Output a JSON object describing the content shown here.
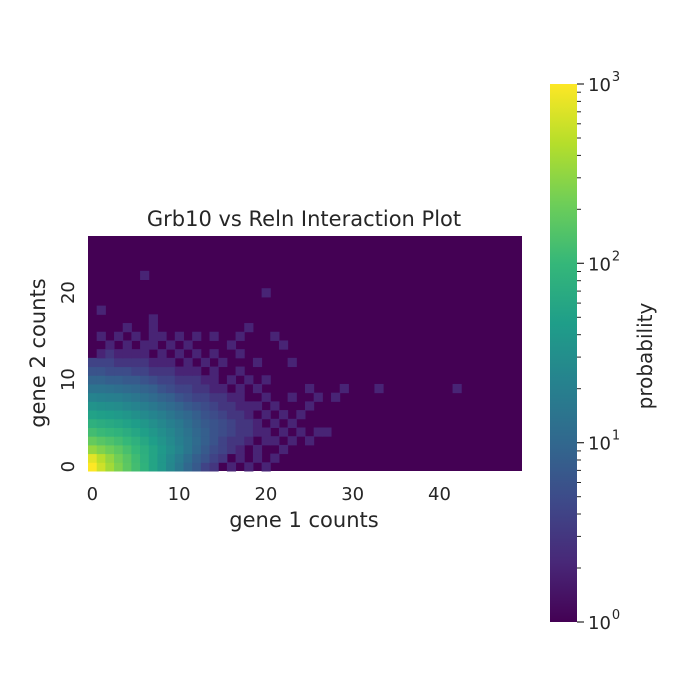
{
  "chart_data": {
    "type": "heatmap",
    "title": "Grb10 vs Reln Interaction Plot",
    "xlabel": "gene 1 counts",
    "ylabel": "gene 2 counts",
    "x_range": [
      0,
      49
    ],
    "y_range": [
      0,
      26
    ],
    "x_ticks": [
      0,
      10,
      20,
      30,
      40
    ],
    "y_ticks": [
      0,
      10,
      20
    ],
    "x_tick_labels": [
      "0",
      "10",
      "20",
      "30",
      "40"
    ],
    "y_tick_labels": [
      "0",
      "10",
      "20"
    ],
    "background_value": 1,
    "colormap": "viridis",
    "colorbar": {
      "label": "probability",
      "scale": "log",
      "range": [
        1,
        1000
      ],
      "tick_labels": [
        {
          "base": "10",
          "exp": "0",
          "value": 1
        },
        {
          "base": "10",
          "exp": "1",
          "value": 10
        },
        {
          "base": "10",
          "exp": "2",
          "value": 100
        },
        {
          "base": "10",
          "exp": "3",
          "value": 1000
        }
      ]
    },
    "cells": [
      [
        0,
        0,
        1000
      ],
      [
        1,
        0,
        600
      ],
      [
        2,
        0,
        380
      ],
      [
        3,
        0,
        250
      ],
      [
        4,
        0,
        170
      ],
      [
        5,
        0,
        120
      ],
      [
        6,
        0,
        85
      ],
      [
        7,
        0,
        55
      ],
      [
        8,
        0,
        38
      ],
      [
        9,
        0,
        25
      ],
      [
        10,
        0,
        16
      ],
      [
        11,
        0,
        10
      ],
      [
        12,
        0,
        7
      ],
      [
        13,
        0,
        4
      ],
      [
        14,
        0,
        3
      ],
      [
        16,
        0,
        2
      ],
      [
        18,
        0,
        2
      ],
      [
        20,
        0,
        2
      ],
      [
        0,
        1,
        750
      ],
      [
        1,
        1,
        480
      ],
      [
        2,
        1,
        320
      ],
      [
        3,
        1,
        220
      ],
      [
        4,
        1,
        160
      ],
      [
        5,
        1,
        115
      ],
      [
        6,
        1,
        80
      ],
      [
        7,
        1,
        55
      ],
      [
        8,
        1,
        38
      ],
      [
        9,
        1,
        26
      ],
      [
        10,
        1,
        18
      ],
      [
        11,
        1,
        12
      ],
      [
        12,
        1,
        8
      ],
      [
        13,
        1,
        6
      ],
      [
        14,
        1,
        4
      ],
      [
        15,
        1,
        3
      ],
      [
        17,
        1,
        2
      ],
      [
        19,
        1,
        2
      ],
      [
        21,
        1,
        2
      ],
      [
        0,
        2,
        330
      ],
      [
        1,
        2,
        260
      ],
      [
        2,
        2,
        210
      ],
      [
        3,
        2,
        170
      ],
      [
        4,
        2,
        130
      ],
      [
        5,
        2,
        100
      ],
      [
        6,
        2,
        75
      ],
      [
        7,
        2,
        55
      ],
      [
        8,
        2,
        40
      ],
      [
        9,
        2,
        30
      ],
      [
        10,
        2,
        22
      ],
      [
        11,
        2,
        15
      ],
      [
        12,
        2,
        10
      ],
      [
        13,
        2,
        7
      ],
      [
        14,
        2,
        5
      ],
      [
        15,
        2,
        4
      ],
      [
        16,
        2,
        3
      ],
      [
        17,
        2,
        2
      ],
      [
        19,
        2,
        2
      ],
      [
        22,
        2,
        2
      ],
      [
        0,
        3,
        190
      ],
      [
        1,
        3,
        160
      ],
      [
        2,
        3,
        140
      ],
      [
        3,
        3,
        120
      ],
      [
        4,
        3,
        100
      ],
      [
        5,
        3,
        80
      ],
      [
        6,
        3,
        62
      ],
      [
        7,
        3,
        47
      ],
      [
        8,
        3,
        35
      ],
      [
        9,
        3,
        27
      ],
      [
        10,
        3,
        20
      ],
      [
        11,
        3,
        15
      ],
      [
        12,
        3,
        11
      ],
      [
        13,
        3,
        8
      ],
      [
        14,
        3,
        6
      ],
      [
        15,
        3,
        4
      ],
      [
        16,
        3,
        3
      ],
      [
        17,
        3,
        3
      ],
      [
        18,
        3,
        2
      ],
      [
        20,
        3,
        2
      ],
      [
        21,
        3,
        2
      ],
      [
        23,
        3,
        2
      ],
      [
        25,
        3,
        2
      ],
      [
        0,
        4,
        120
      ],
      [
        1,
        4,
        105
      ],
      [
        2,
        4,
        95
      ],
      [
        3,
        4,
        85
      ],
      [
        4,
        4,
        72
      ],
      [
        5,
        4,
        60
      ],
      [
        6,
        4,
        48
      ],
      [
        7,
        4,
        38
      ],
      [
        8,
        4,
        30
      ],
      [
        9,
        4,
        24
      ],
      [
        10,
        4,
        18
      ],
      [
        11,
        4,
        14
      ],
      [
        12,
        4,
        10
      ],
      [
        13,
        4,
        8
      ],
      [
        14,
        4,
        6
      ],
      [
        15,
        4,
        5
      ],
      [
        16,
        4,
        4
      ],
      [
        17,
        4,
        3
      ],
      [
        18,
        4,
        3
      ],
      [
        19,
        4,
        2
      ],
      [
        20,
        4,
        2
      ],
      [
        22,
        4,
        2
      ],
      [
        24,
        4,
        2
      ],
      [
        26,
        4,
        2
      ],
      [
        27,
        4,
        2
      ],
      [
        0,
        5,
        80
      ],
      [
        1,
        5,
        72
      ],
      [
        2,
        5,
        66
      ],
      [
        3,
        5,
        60
      ],
      [
        4,
        5,
        52
      ],
      [
        5,
        5,
        45
      ],
      [
        6,
        5,
        38
      ],
      [
        7,
        5,
        31
      ],
      [
        8,
        5,
        25
      ],
      [
        9,
        5,
        20
      ],
      [
        10,
        5,
        16
      ],
      [
        11,
        5,
        12
      ],
      [
        12,
        5,
        9
      ],
      [
        13,
        5,
        7
      ],
      [
        14,
        5,
        6
      ],
      [
        15,
        5,
        5
      ],
      [
        16,
        5,
        4
      ],
      [
        17,
        5,
        3
      ],
      [
        18,
        5,
        3
      ],
      [
        19,
        5,
        2
      ],
      [
        21,
        5,
        2
      ],
      [
        23,
        5,
        2
      ],
      [
        0,
        6,
        52
      ],
      [
        1,
        6,
        48
      ],
      [
        2,
        6,
        45
      ],
      [
        3,
        6,
        42
      ],
      [
        4,
        6,
        37
      ],
      [
        5,
        6,
        32
      ],
      [
        6,
        6,
        27
      ],
      [
        7,
        6,
        23
      ],
      [
        8,
        6,
        19
      ],
      [
        9,
        6,
        15
      ],
      [
        10,
        6,
        12
      ],
      [
        11,
        6,
        10
      ],
      [
        12,
        6,
        8
      ],
      [
        13,
        6,
        6
      ],
      [
        14,
        6,
        5
      ],
      [
        15,
        6,
        4
      ],
      [
        16,
        6,
        3
      ],
      [
        17,
        6,
        3
      ],
      [
        18,
        6,
        2
      ],
      [
        20,
        6,
        2
      ],
      [
        22,
        6,
        2
      ],
      [
        24,
        6,
        2
      ],
      [
        0,
        7,
        34
      ],
      [
        1,
        7,
        32
      ],
      [
        2,
        7,
        30
      ],
      [
        3,
        7,
        28
      ],
      [
        4,
        7,
        25
      ],
      [
        5,
        7,
        22
      ],
      [
        6,
        7,
        19
      ],
      [
        7,
        7,
        16
      ],
      [
        8,
        7,
        13
      ],
      [
        9,
        7,
        11
      ],
      [
        10,
        7,
        9
      ],
      [
        11,
        7,
        7
      ],
      [
        12,
        7,
        6
      ],
      [
        13,
        7,
        5
      ],
      [
        14,
        7,
        4
      ],
      [
        15,
        7,
        3
      ],
      [
        16,
        7,
        3
      ],
      [
        17,
        7,
        2
      ],
      [
        18,
        7,
        2
      ],
      [
        19,
        7,
        2
      ],
      [
        21,
        7,
        2
      ],
      [
        25,
        7,
        2
      ],
      [
        0,
        8,
        22
      ],
      [
        1,
        8,
        21
      ],
      [
        2,
        8,
        20
      ],
      [
        3,
        8,
        19
      ],
      [
        4,
        8,
        17
      ],
      [
        5,
        8,
        15
      ],
      [
        6,
        8,
        13
      ],
      [
        7,
        8,
        11
      ],
      [
        8,
        8,
        9
      ],
      [
        9,
        8,
        8
      ],
      [
        10,
        8,
        6
      ],
      [
        11,
        8,
        5
      ],
      [
        12,
        8,
        4
      ],
      [
        13,
        8,
        4
      ],
      [
        14,
        8,
        3
      ],
      [
        15,
        8,
        3
      ],
      [
        16,
        8,
        2
      ],
      [
        17,
        8,
        2
      ],
      [
        20,
        8,
        2
      ],
      [
        23,
        8,
        2
      ],
      [
        26,
        8,
        2
      ],
      [
        28,
        8,
        2
      ],
      [
        0,
        9,
        14
      ],
      [
        1,
        9,
        14
      ],
      [
        2,
        9,
        13
      ],
      [
        3,
        9,
        12
      ],
      [
        4,
        9,
        11
      ],
      [
        5,
        9,
        10
      ],
      [
        6,
        9,
        9
      ],
      [
        7,
        9,
        8
      ],
      [
        8,
        9,
        6
      ],
      [
        9,
        9,
        5
      ],
      [
        10,
        9,
        4
      ],
      [
        11,
        9,
        4
      ],
      [
        12,
        9,
        3
      ],
      [
        13,
        9,
        3
      ],
      [
        14,
        9,
        2
      ],
      [
        15,
        9,
        2
      ],
      [
        17,
        9,
        2
      ],
      [
        19,
        9,
        2
      ],
      [
        25,
        9,
        2
      ],
      [
        29,
        9,
        2
      ],
      [
        33,
        9,
        2
      ],
      [
        42,
        9,
        2
      ],
      [
        0,
        10,
        9
      ],
      [
        1,
        10,
        9
      ],
      [
        2,
        10,
        8
      ],
      [
        3,
        10,
        8
      ],
      [
        4,
        10,
        7
      ],
      [
        5,
        10,
        7
      ],
      [
        6,
        10,
        6
      ],
      [
        7,
        10,
        5
      ],
      [
        8,
        10,
        4
      ],
      [
        9,
        10,
        4
      ],
      [
        10,
        10,
        3
      ],
      [
        11,
        10,
        3
      ],
      [
        12,
        10,
        3
      ],
      [
        13,
        10,
        2
      ],
      [
        14,
        10,
        2
      ],
      [
        16,
        10,
        2
      ],
      [
        18,
        10,
        2
      ],
      [
        20,
        10,
        2
      ],
      [
        0,
        11,
        6
      ],
      [
        1,
        11,
        6
      ],
      [
        2,
        11,
        5
      ],
      [
        3,
        11,
        5
      ],
      [
        4,
        11,
        5
      ],
      [
        5,
        11,
        4
      ],
      [
        6,
        11,
        4
      ],
      [
        7,
        11,
        3
      ],
      [
        8,
        11,
        3
      ],
      [
        9,
        11,
        3
      ],
      [
        10,
        11,
        2
      ],
      [
        11,
        11,
        2
      ],
      [
        12,
        11,
        2
      ],
      [
        14,
        11,
        2
      ],
      [
        17,
        11,
        2
      ],
      [
        0,
        12,
        4
      ],
      [
        1,
        12,
        4
      ],
      [
        2,
        12,
        4
      ],
      [
        3,
        12,
        3
      ],
      [
        4,
        12,
        3
      ],
      [
        5,
        12,
        3
      ],
      [
        6,
        12,
        3
      ],
      [
        7,
        12,
        2
      ],
      [
        8,
        12,
        2
      ],
      [
        9,
        12,
        2
      ],
      [
        11,
        12,
        2
      ],
      [
        13,
        12,
        2
      ],
      [
        15,
        12,
        2
      ],
      [
        19,
        12,
        2
      ],
      [
        23,
        12,
        2
      ],
      [
        1,
        13,
        2
      ],
      [
        2,
        13,
        3
      ],
      [
        3,
        13,
        2
      ],
      [
        4,
        13,
        2
      ],
      [
        5,
        13,
        2
      ],
      [
        6,
        13,
        2
      ],
      [
        8,
        13,
        2
      ],
      [
        10,
        13,
        2
      ],
      [
        12,
        13,
        2
      ],
      [
        14,
        13,
        2
      ],
      [
        17,
        13,
        2
      ],
      [
        2,
        14,
        2
      ],
      [
        4,
        14,
        2
      ],
      [
        6,
        14,
        2
      ],
      [
        7,
        14,
        2
      ],
      [
        9,
        14,
        2
      ],
      [
        11,
        14,
        2
      ],
      [
        16,
        14,
        2
      ],
      [
        22,
        14,
        2
      ],
      [
        1,
        15,
        2
      ],
      [
        3,
        15,
        2
      ],
      [
        5,
        15,
        2
      ],
      [
        7,
        15,
        2
      ],
      [
        8,
        15,
        2
      ],
      [
        10,
        15,
        2
      ],
      [
        12,
        15,
        2
      ],
      [
        14,
        15,
        2
      ],
      [
        17,
        15,
        2
      ],
      [
        21,
        15,
        2
      ],
      [
        4,
        16,
        2
      ],
      [
        7,
        16,
        2
      ],
      [
        18,
        16,
        2
      ],
      [
        7,
        17,
        2
      ],
      [
        1,
        18,
        2
      ],
      [
        20,
        20,
        2
      ],
      [
        6,
        22,
        2
      ]
    ]
  }
}
